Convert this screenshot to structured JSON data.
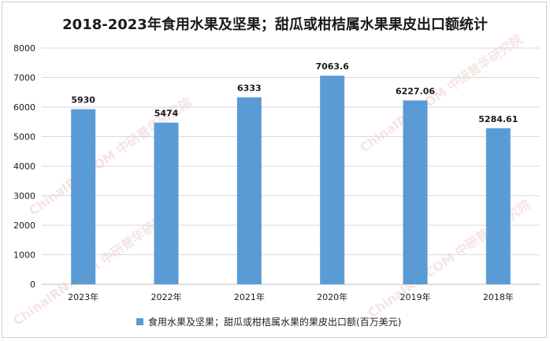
{
  "title": "2018-2023年食用水果及坚果；甜瓜或柑桔属水果果皮出口额统计",
  "watermark": "ChinaIRN.COM 中研普华研究院",
  "colors": {
    "bar": "#5b9bd5",
    "grid": "#d9d9d9",
    "axis": "#595959",
    "text": "#1a1a1a"
  },
  "legend": {
    "label": "食用水果及坚果；甜瓜或柑桔属水果的果皮出口额(百万美元)"
  },
  "chart_data": {
    "type": "bar",
    "title": "2018-2023年食用水果及坚果；甜瓜或柑桔属水果果皮出口额统计",
    "categories": [
      "2023年",
      "2022年",
      "2021年",
      "2020年",
      "2019年",
      "2018年"
    ],
    "series": [
      {
        "name": "食用水果及坚果；甜瓜或柑桔属水果的果皮出口额(百万美元)",
        "values": [
          5930,
          5474,
          6333,
          7063.6,
          6227.06,
          5284.61
        ]
      }
    ],
    "data_labels": [
      "5930",
      "5474",
      "6333",
      "7063.6",
      "6227.06",
      "5284.61"
    ],
    "ylim": [
      0,
      8000
    ],
    "yticks": [
      "0",
      "1000",
      "2000",
      "3000",
      "4000",
      "5000",
      "6000",
      "7000",
      "8000"
    ],
    "grid": true,
    "legend_position": "bottom"
  }
}
